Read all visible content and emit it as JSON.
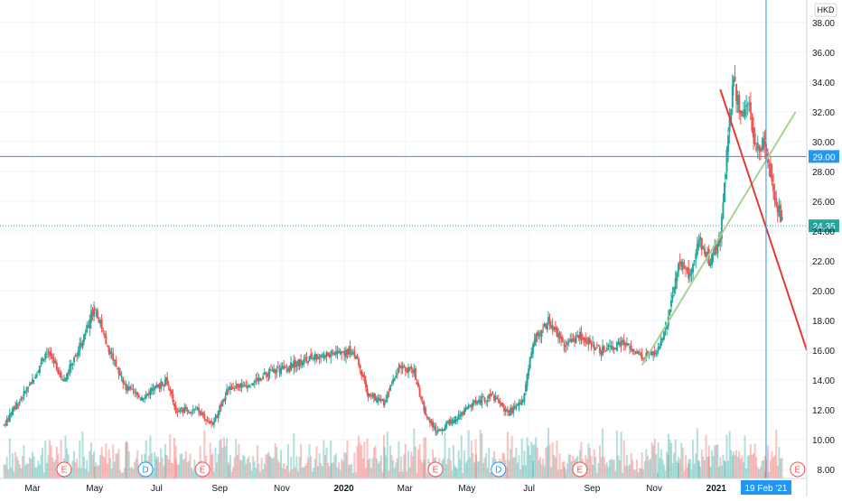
{
  "chart_data": {
    "type": "candlestick",
    "currency": "HKD",
    "y_axis": {
      "ticks": [
        "38.00",
        "36.00",
        "34.00",
        "32.00",
        "30.00",
        "28.00",
        "26.00",
        "24.00",
        "22.00",
        "20.00",
        "18.00",
        "16.00",
        "14.00",
        "12.00",
        "10.00",
        "8.00"
      ],
      "range": [
        7.4,
        39.5
      ],
      "log": false
    },
    "x_axis": {
      "labels": [
        "Mar",
        "May",
        "Jul",
        "Sep",
        "Nov",
        "2020",
        "Mar",
        "May",
        "Jul",
        "Sep",
        "Nov",
        "2021"
      ],
      "label_dates": [
        "2019-03",
        "2019-05",
        "2019-07",
        "2019-09",
        "2019-11",
        "2020-01",
        "2020-03",
        "2020-05",
        "2020-07",
        "2020-09",
        "2020-11",
        "2021-01"
      ],
      "range": [
        "2019-01-28",
        "2021-03-31"
      ],
      "crosshair_label": "19 Feb '21",
      "crosshair_date": "2021-02-19"
    },
    "price_keypoints": [
      [
        "2019-02-01",
        11.0
      ],
      [
        "2019-02-15",
        12.5
      ],
      [
        "2019-03-01",
        14.0
      ],
      [
        "2019-03-15",
        16.0
      ],
      [
        "2019-04-01",
        14.0
      ],
      [
        "2019-04-15",
        16.0
      ],
      [
        "2019-05-01",
        19.0
      ],
      [
        "2019-05-15",
        16.0
      ],
      [
        "2019-06-01",
        13.5
      ],
      [
        "2019-06-15",
        12.8
      ],
      [
        "2019-07-01",
        13.5
      ],
      [
        "2019-07-10",
        14.0
      ],
      [
        "2019-07-20",
        12.0
      ],
      [
        "2019-08-10",
        12.0
      ],
      [
        "2019-08-25",
        11.0
      ],
      [
        "2019-09-10",
        13.5
      ],
      [
        "2019-10-01",
        13.8
      ],
      [
        "2019-10-20",
        14.5
      ],
      [
        "2019-11-10",
        15.0
      ],
      [
        "2019-12-01",
        15.5
      ],
      [
        "2019-12-20",
        15.8
      ],
      [
        "2020-01-10",
        16.0
      ],
      [
        "2020-01-25",
        13.0
      ],
      [
        "2020-02-10",
        12.5
      ],
      [
        "2020-02-25",
        15.0
      ],
      [
        "2020-03-10",
        14.5
      ],
      [
        "2020-03-20",
        12.0
      ],
      [
        "2020-04-01",
        10.5
      ],
      [
        "2020-04-20",
        11.5
      ],
      [
        "2020-05-10",
        12.5
      ],
      [
        "2020-05-25",
        13.0
      ],
      [
        "2020-06-10",
        11.8
      ],
      [
        "2020-06-25",
        12.5
      ],
      [
        "2020-07-05",
        16.5
      ],
      [
        "2020-07-20",
        18.0
      ],
      [
        "2020-08-05",
        16.5
      ],
      [
        "2020-08-20",
        17.0
      ],
      [
        "2020-09-10",
        16.0
      ],
      [
        "2020-10-01",
        16.5
      ],
      [
        "2020-10-20",
        15.5
      ],
      [
        "2020-11-05",
        16.0
      ],
      [
        "2020-11-15",
        18.0
      ],
      [
        "2020-11-25",
        22.0
      ],
      [
        "2020-12-05",
        21.0
      ],
      [
        "2020-12-15",
        23.5
      ],
      [
        "2020-12-25",
        22.0
      ],
      [
        "2021-01-05",
        23.5
      ],
      [
        "2021-01-10",
        28.0
      ],
      [
        "2021-01-18",
        34.0
      ],
      [
        "2021-01-25",
        32.0
      ],
      [
        "2021-02-01",
        33.0
      ],
      [
        "2021-02-08",
        29.5
      ],
      [
        "2021-02-18",
        30.0
      ],
      [
        "2021-02-22",
        28.5
      ],
      [
        "2021-03-01",
        26.0
      ],
      [
        "2021-03-08",
        24.35
      ]
    ],
    "horizontal_line": {
      "value": 29.0,
      "label": "29.00",
      "color": "#2196F3"
    },
    "last_price": {
      "value": 24.35,
      "label": "24.35",
      "color": "#26A69A"
    },
    "trendlines": [
      {
        "name": "rising support",
        "color": "#A5D395",
        "from": [
          "2020-10-20",
          15.0
        ],
        "to": [
          "2021-03-20",
          32.0
        ]
      },
      {
        "name": "falling resistance",
        "color": "#E53935",
        "from": [
          "2021-01-05",
          33.5
        ],
        "to": [
          "2021-03-31",
          16.0
        ]
      }
    ],
    "event_markers": [
      {
        "letter": "E",
        "date": "2019-04-01",
        "color": "#EF5350"
      },
      {
        "letter": "D",
        "date": "2019-06-20",
        "color": "#2196F3"
      },
      {
        "letter": "E",
        "date": "2019-08-15",
        "color": "#EF5350"
      },
      {
        "letter": "E",
        "date": "2020-03-31",
        "color": "#EF5350"
      },
      {
        "letter": "D",
        "date": "2020-06-01",
        "color": "#2196F3"
      },
      {
        "letter": "E",
        "date": "2020-08-20",
        "color": "#EF5350"
      },
      {
        "letter": "E",
        "date": "2021-03-22",
        "color": "#EF5350"
      }
    ],
    "colors": {
      "up": "#26A69A",
      "down": "#EF5350",
      "grid": "#F0F3FA",
      "axis_text": "#131722"
    },
    "grid": true
  }
}
